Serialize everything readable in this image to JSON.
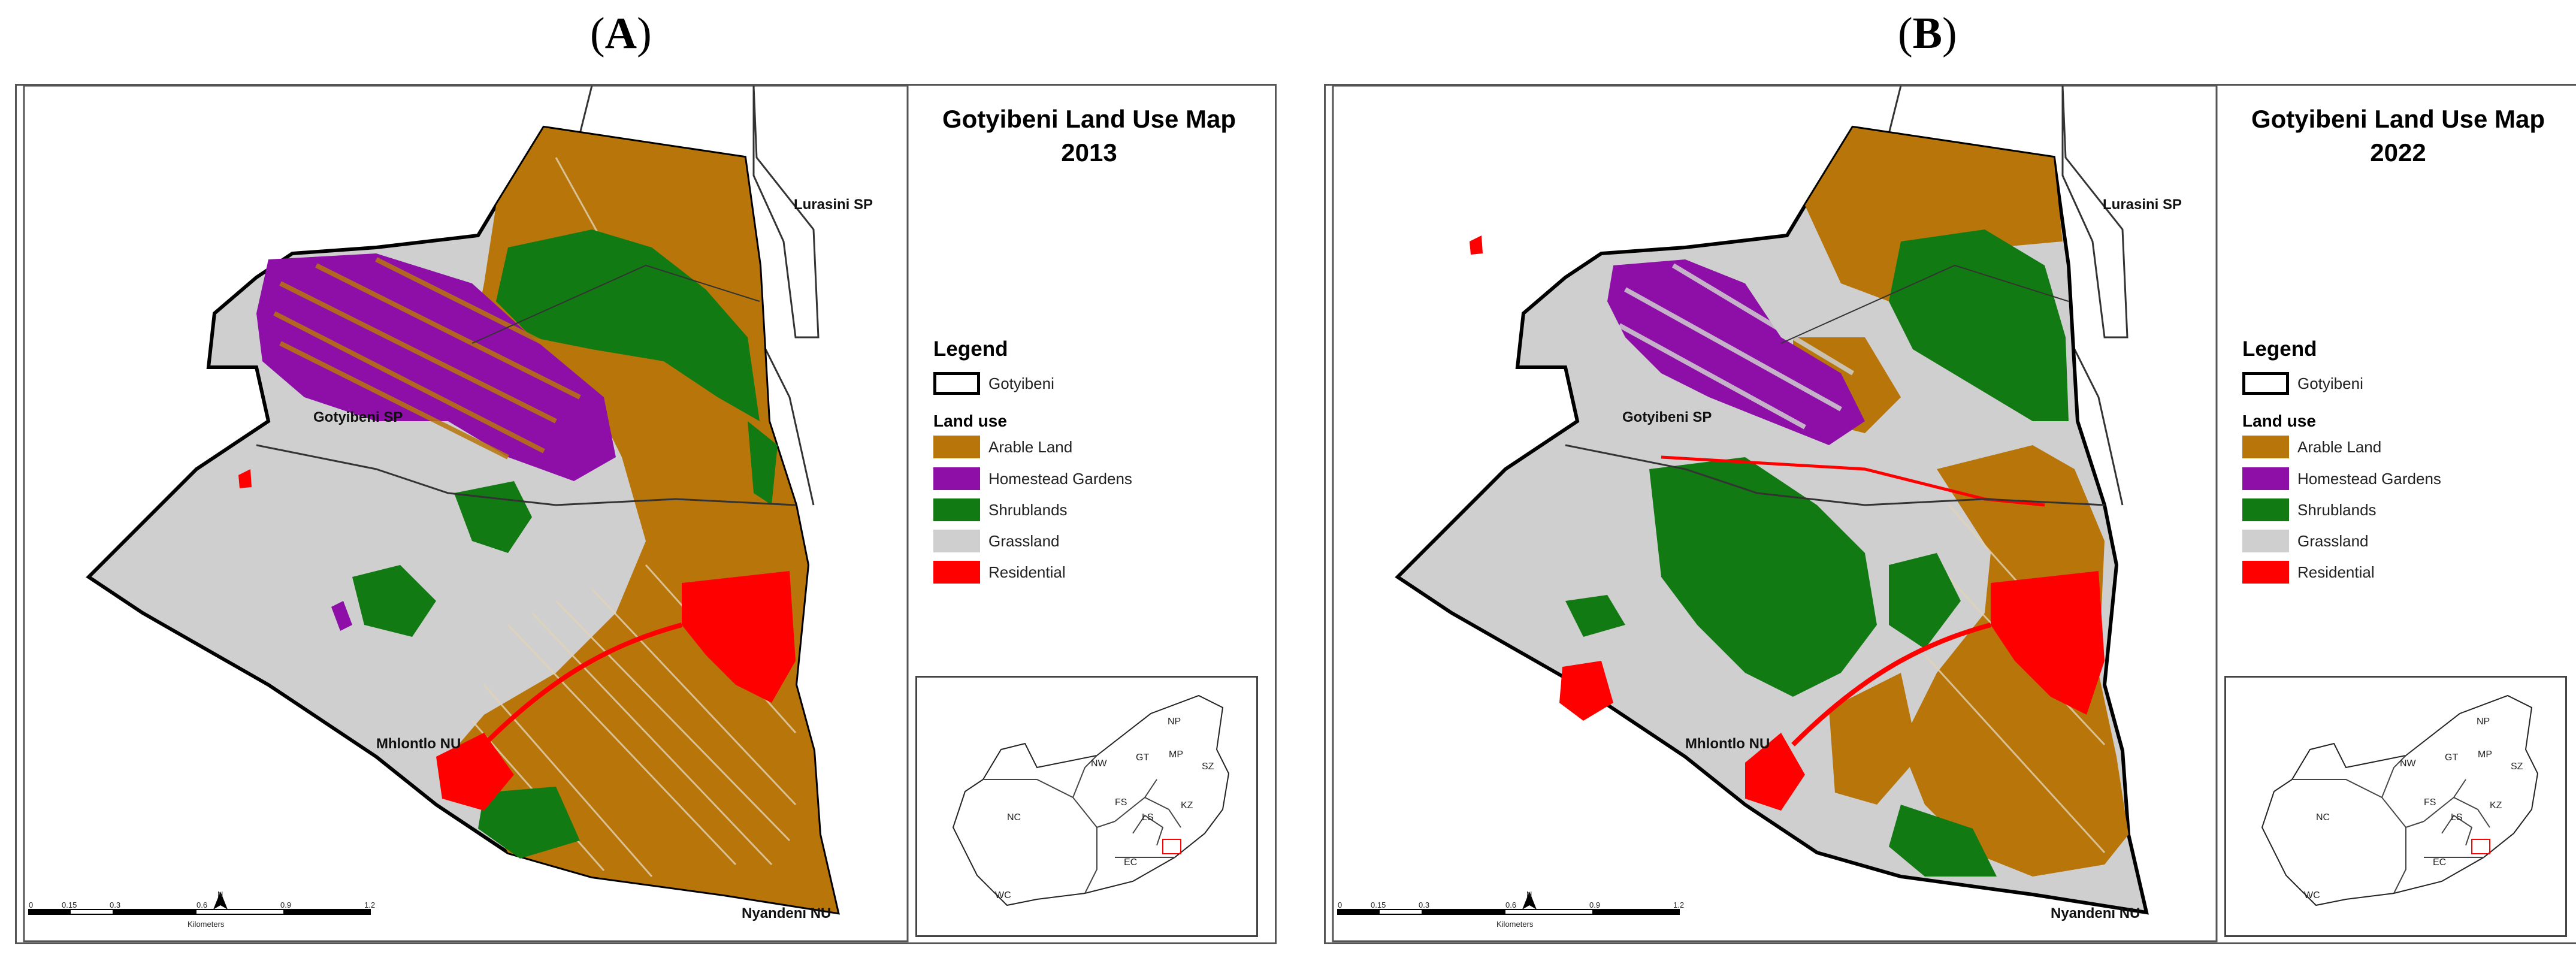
{
  "panels": [
    {
      "label": "A",
      "title_line1": "Gotyibeni Land Use Map",
      "title_line2": "2013",
      "places": {
        "lurasini": "Lurasini SP",
        "gotyibeni": "Gotyibeni SP",
        "mhlontlo": "Mhlontlo NU",
        "nyandeni": "Nyandeni NU"
      }
    },
    {
      "label": "B",
      "title_line1": "Gotyibeni Land Use Map",
      "title_line2": "2022",
      "places": {
        "lurasini": "Lurasini SP",
        "gotyibeni": "Gotyibeni SP",
        "mhlontlo": "Mhlontlo NU",
        "nyandeni": "Nyandeni NU"
      }
    }
  ],
  "legend": {
    "title": "Legend",
    "boundary_label": "Gotyibeni",
    "subtitle": "Land use",
    "classes": [
      {
        "label": "Arable Land",
        "color": "#b8760a"
      },
      {
        "label": "Homestead Gardens",
        "color": "#8e0ea8"
      },
      {
        "label": "Shrublands",
        "color": "#127a12"
      },
      {
        "label": "Grassland",
        "color": "#cfcfcf"
      },
      {
        "label": "Residential",
        "color": "#ff0000"
      }
    ]
  },
  "inset": {
    "provinces": [
      "NP",
      "NW",
      "GT",
      "MP",
      "SZ",
      "NC",
      "FS",
      "LS",
      "KZ",
      "EC",
      "WC"
    ]
  },
  "scale_bar": {
    "ticks": [
      "0",
      "0.15",
      "0.3",
      "0.6",
      "0.9",
      "1.2"
    ],
    "unit": "Kilometers",
    "north": "N"
  }
}
